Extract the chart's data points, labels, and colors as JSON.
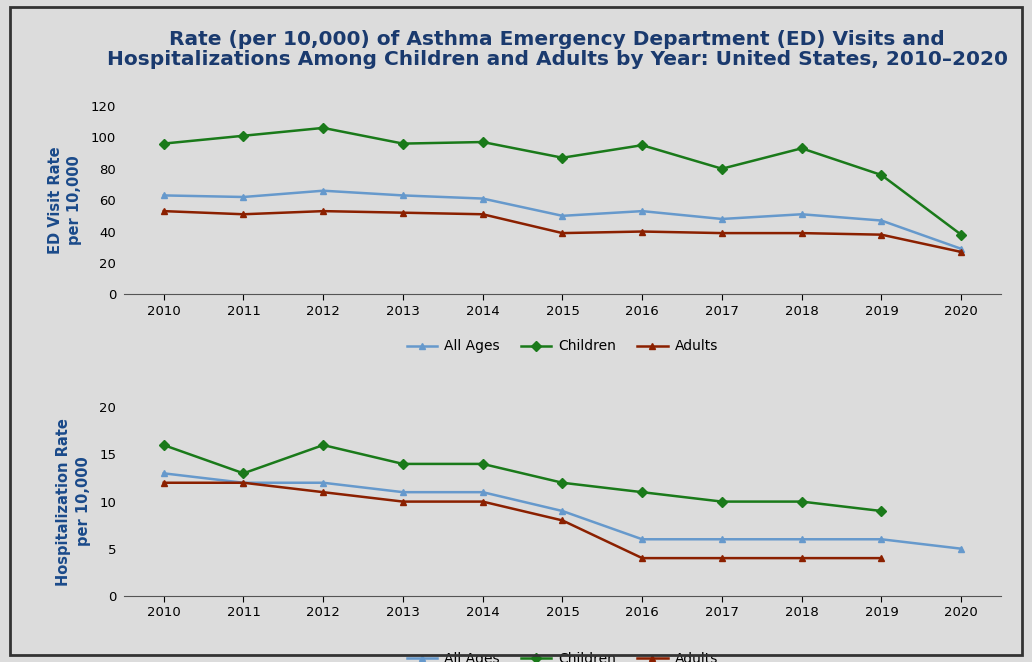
{
  "title_line1": "Rate (per 10,000) of Asthma Emergency Department (ED) Visits and",
  "title_line2": "Hospitalizations Among Children and Adults by Year: United States, 2010–2020",
  "years": [
    2010,
    2011,
    2012,
    2013,
    2014,
    2015,
    2016,
    2017,
    2018,
    2019,
    2020
  ],
  "ed_all_ages": [
    63,
    62,
    66,
    63,
    61,
    50,
    53,
    48,
    51,
    47,
    29
  ],
  "ed_children": [
    96,
    101,
    106,
    96,
    97,
    87,
    95,
    80,
    93,
    76,
    38
  ],
  "ed_adults": [
    53,
    51,
    53,
    52,
    51,
    39,
    40,
    39,
    39,
    38,
    27
  ],
  "hosp_all_ages": [
    13,
    12,
    12,
    11,
    11,
    9,
    6,
    6,
    6,
    6,
    5
  ],
  "hosp_children": [
    16,
    13,
    16,
    14,
    14,
    12,
    11,
    10,
    10,
    9,
    null
  ],
  "hosp_adults": [
    12,
    12,
    11,
    10,
    10,
    8,
    4,
    4,
    4,
    4,
    null
  ],
  "color_all_ages": "#6699cc",
  "color_children": "#1a7a1a",
  "color_adults": "#8B2000",
  "bg_color": "#dcdcdc",
  "ed_ylabel": "ED Visit Rate\nper 10,000",
  "hosp_ylabel": "Hospitalization Rate\nper 10,000",
  "ed_ylim": [
    0,
    120
  ],
  "hosp_ylim": [
    0,
    20
  ],
  "ed_yticks": [
    0,
    20,
    40,
    60,
    80,
    100,
    120
  ],
  "hosp_yticks": [
    0,
    5,
    10,
    15,
    20
  ],
  "title_fontsize": 14.5,
  "axis_label_fontsize": 10.5,
  "tick_fontsize": 9.5,
  "legend_fontsize": 10
}
